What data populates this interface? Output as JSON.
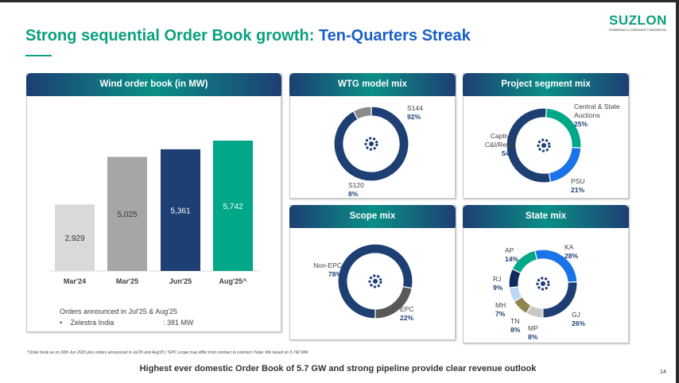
{
  "header": {
    "title_part1": "Strong sequential Order Book growth: ",
    "title_part2": "Ten-Quarters Streak",
    "logo": "SUZLON",
    "logo_tagline": "POWERING A GREENER TOMORROW"
  },
  "colors": {
    "navy": "#1d3f73",
    "teal": "#00a887",
    "light_gray": "#d9d9d9",
    "mid_gray": "#a6a6a6",
    "dark_gray": "#595959",
    "blue": "#1a73e8"
  },
  "chart_data": [
    {
      "type": "bar",
      "title": "Wind order book (in MW)",
      "categories": [
        "Mar'24",
        "Mar'25",
        "Jun'25",
        "Aug'25^"
      ],
      "values": [
        2929,
        5025,
        5361,
        5742
      ],
      "value_labels": [
        "2,929",
        "5,025",
        "5,361",
        "5,742"
      ],
      "bar_colors": [
        "#d9d9d9",
        "#a6a6a6",
        "#1d3f73",
        "#00a887"
      ],
      "grid": false
    },
    {
      "type": "pie",
      "title": "WTG model mix",
      "icon": "lightbulb-gear-icon",
      "slices": [
        {
          "label": "S144",
          "value": 92,
          "display": "92%",
          "color": "#1d3f73"
        },
        {
          "label": "S120",
          "value": 8,
          "display": "8%",
          "color": "#8c8c8c"
        }
      ]
    },
    {
      "type": "pie",
      "title": "Project segment mix",
      "icon": "gear-document-icon",
      "slices": [
        {
          "label": "Central & State Auctions",
          "value": 25,
          "display": "25%",
          "color": "#00a887"
        },
        {
          "label": "PSU",
          "value": 21,
          "display": "21%",
          "color": "#1a73e8"
        },
        {
          "label": "Captive/ C&I/Retail",
          "value": 54,
          "display": "54%",
          "color": "#1d3f73"
        }
      ]
    },
    {
      "type": "pie",
      "title": "Scope mix",
      "icon": "gear-network-icon",
      "slices": [
        {
          "label": "Non-EPC",
          "value": 78,
          "display": "78%",
          "color": "#1d3f73"
        },
        {
          "label": "EPC",
          "value": 22,
          "display": "22%",
          "color": "#595959"
        }
      ]
    },
    {
      "type": "pie",
      "title": "State mix",
      "icon": "india-map-icon",
      "slices": [
        {
          "label": "KA",
          "value": 28,
          "display": "28%",
          "color": "#1a73e8"
        },
        {
          "label": "GJ",
          "value": 26,
          "display": "26%",
          "color": "#1d3f73"
        },
        {
          "label": "MP",
          "value": 8,
          "display": "8%",
          "color": "#c8c8c8"
        },
        {
          "label": "TN",
          "value": 8,
          "display": "8%",
          "color": "#8f8550"
        },
        {
          "label": "MH",
          "value": 7,
          "display": "7%",
          "color": "#bdd7f5"
        },
        {
          "label": "RJ",
          "value": 9,
          "display": "9%",
          "color": "#0e2a5e"
        },
        {
          "label": "AP",
          "value": 14,
          "display": "14%",
          "color": "#00a887"
        }
      ]
    }
  ],
  "orders": {
    "heading": "Orders announced in Jul'25 & Aug'25",
    "bullet": "•",
    "customer": "Zelestra India",
    "amount": ": 381 MW"
  },
  "footnote": "^Order book as on 30th Jun 2025 plus orders announced in Jul'25 and Aug'25  |  *EPC scope may differ from contract to contract I Note: Mix based on 5,742 MW",
  "bottom_line": "Highest ever domestic Order Book of 5.7 GW and strong pipeline provide clear revenue outlook",
  "page_number": "14"
}
